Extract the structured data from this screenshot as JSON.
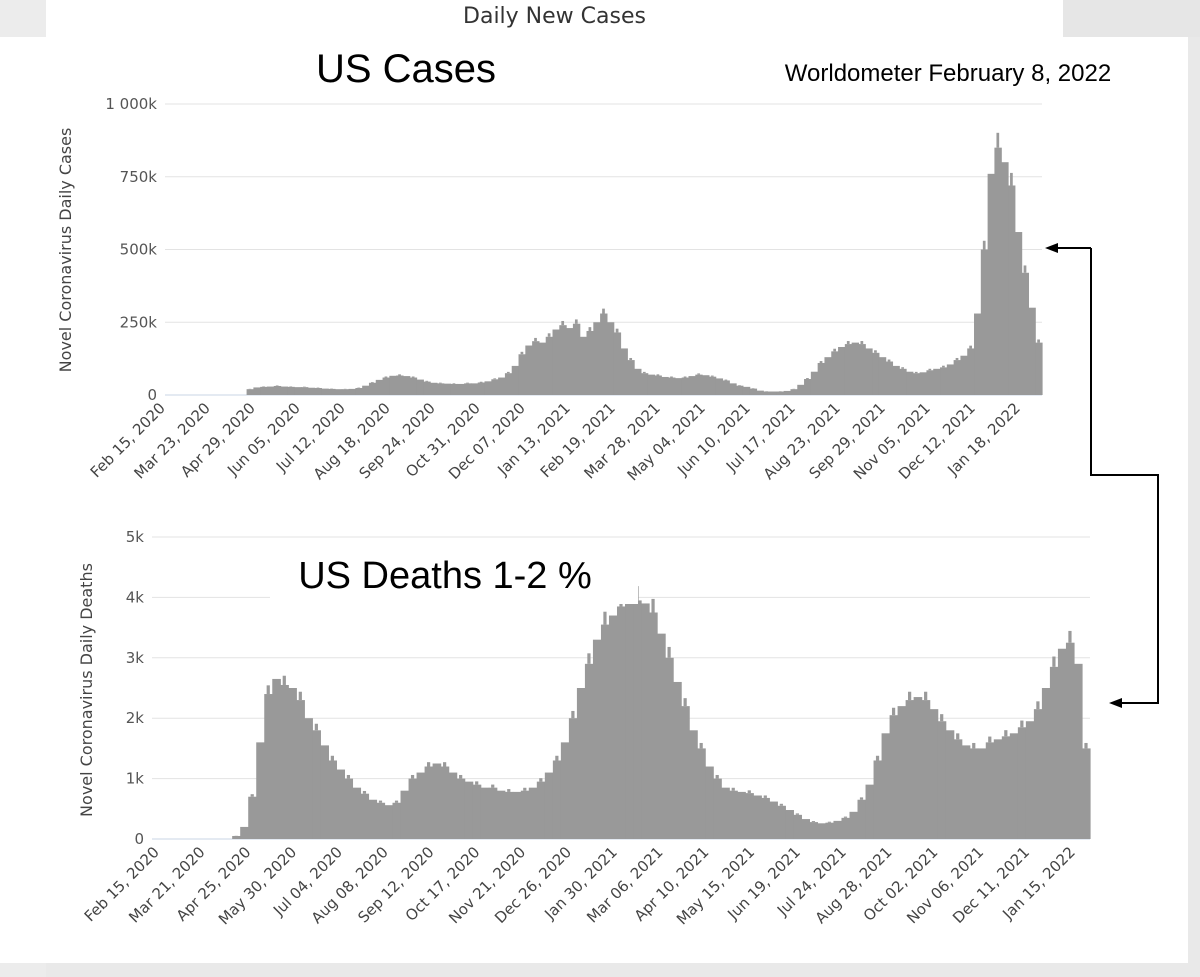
{
  "header": {
    "title": "Daily New Cases"
  },
  "chart_data": [
    {
      "type": "bar",
      "title": "US Cases",
      "source": "Worldometer  February 8, 2022",
      "ylabel": "Novel Coronavirus Daily Cases",
      "xlabel": "",
      "ylim": [
        0,
        1000000
      ],
      "yticks": [
        0,
        250000,
        500000,
        750000,
        1000000
      ],
      "ytick_labels": [
        "0",
        "250k",
        "500k",
        "750k",
        "1 000k"
      ],
      "xtick_labels": [
        "Feb 15, 2020",
        "Mar 23, 2020",
        "Apr 29, 2020",
        "Jun 05, 2020",
        "Jul 12, 2020",
        "Aug 18, 2020",
        "Sep 24, 2020",
        "Oct 31, 2020",
        "Dec 07, 2020",
        "Jan 13, 2021",
        "Feb 19, 2021",
        "Mar 28, 2021",
        "May 04, 2021",
        "Jun 10, 2021",
        "Jul 17, 2021",
        "Aug 23, 2021",
        "Sep 29, 2021",
        "Nov 05, 2021",
        "Dec 12, 2021",
        "Jan 18, 2022"
      ],
      "series": [
        {
          "name": "Daily Cases",
          "values": [
            0,
            0,
            0,
            0,
            0,
            0,
            0,
            0,
            0,
            0,
            0,
            0,
            20000,
            26000,
            28000,
            29000,
            31000,
            29000,
            28000,
            27000,
            27000,
            25000,
            24000,
            22000,
            21000,
            20000,
            20000,
            21000,
            24000,
            32000,
            42000,
            52000,
            60000,
            66000,
            67000,
            65000,
            60000,
            53000,
            46000,
            42000,
            40000,
            39000,
            38000,
            38000,
            40000,
            40000,
            43000,
            47000,
            54000,
            60000,
            75000,
            100000,
            140000,
            170000,
            185000,
            180000,
            200000,
            225000,
            240000,
            230000,
            245000,
            200000,
            220000,
            250000,
            280000,
            250000,
            215000,
            160000,
            120000,
            90000,
            75000,
            70000,
            67000,
            62000,
            60000,
            58000,
            60000,
            65000,
            70000,
            68000,
            63000,
            57000,
            50000,
            40000,
            32000,
            28000,
            22000,
            15000,
            12000,
            12000,
            12000,
            14000,
            20000,
            35000,
            55000,
            80000,
            110000,
            130000,
            150000,
            165000,
            175000,
            180000,
            175000,
            160000,
            145000,
            130000,
            115000,
            100000,
            90000,
            80000,
            75000,
            78000,
            85000,
            90000,
            95000,
            105000,
            120000,
            135000,
            160000,
            280000,
            500000,
            760000,
            850000,
            800000,
            720000,
            560000,
            420000,
            300000,
            180000
          ]
        }
      ]
    },
    {
      "type": "bar",
      "title": "US Deaths  1-2 %",
      "ylabel": "Novel Coronavirus Daily Deaths",
      "xlabel": "",
      "ylim": [
        0,
        5000
      ],
      "yticks": [
        0,
        1000,
        2000,
        3000,
        4000,
        5000
      ],
      "ytick_labels": [
        "0",
        "1k",
        "2k",
        "3k",
        "4k",
        "5k"
      ],
      "xtick_labels": [
        "Feb 15, 2020",
        "Mar 21, 2020",
        "Apr 25, 2020",
        "May 30, 2020",
        "Jul 04, 2020",
        "Aug 08, 2020",
        "Sep 12, 2020",
        "Oct 17, 2020",
        "Nov 21, 2020",
        "Dec 26, 2020",
        "Jan 30, 2021",
        "Mar 06, 2021",
        "Apr 10, 2021",
        "May 15, 2021",
        "Jun 19, 2021",
        "Jul 24, 2021",
        "Aug 28, 2021",
        "Oct 02, 2021",
        "Nov 06, 2021",
        "Dec 11, 2021",
        "Jan 15, 2022"
      ],
      "series": [
        {
          "name": "Daily Deaths",
          "values": [
            0,
            0,
            0,
            0,
            0,
            0,
            0,
            0,
            0,
            0,
            50,
            200,
            700,
            1600,
            2400,
            2650,
            2550,
            2500,
            2300,
            2000,
            1800,
            1550,
            1300,
            1150,
            1000,
            850,
            750,
            650,
            600,
            560,
            600,
            800,
            1000,
            1100,
            1200,
            1250,
            1200,
            1100,
            1000,
            950,
            900,
            850,
            850,
            800,
            780,
            780,
            800,
            850,
            950,
            1100,
            1300,
            1600,
            2000,
            2500,
            2900,
            3300,
            3550,
            3700,
            3850,
            3900,
            3950,
            3900,
            3750,
            3400,
            3000,
            2600,
            2200,
            1800,
            1500,
            1200,
            1000,
            850,
            800,
            780,
            760,
            720,
            680,
            620,
            550,
            480,
            400,
            330,
            280,
            260,
            270,
            300,
            350,
            450,
            650,
            900,
            1300,
            1750,
            2050,
            2200,
            2300,
            2350,
            2300,
            2150,
            1950,
            1800,
            1650,
            1550,
            1500,
            1500,
            1600,
            1650,
            1700,
            1750,
            1850,
            1950,
            2150,
            2500,
            2850,
            3150,
            3250,
            2900,
            1500
          ]
        }
      ]
    }
  ],
  "annotations": {
    "arrow_note": ""
  }
}
